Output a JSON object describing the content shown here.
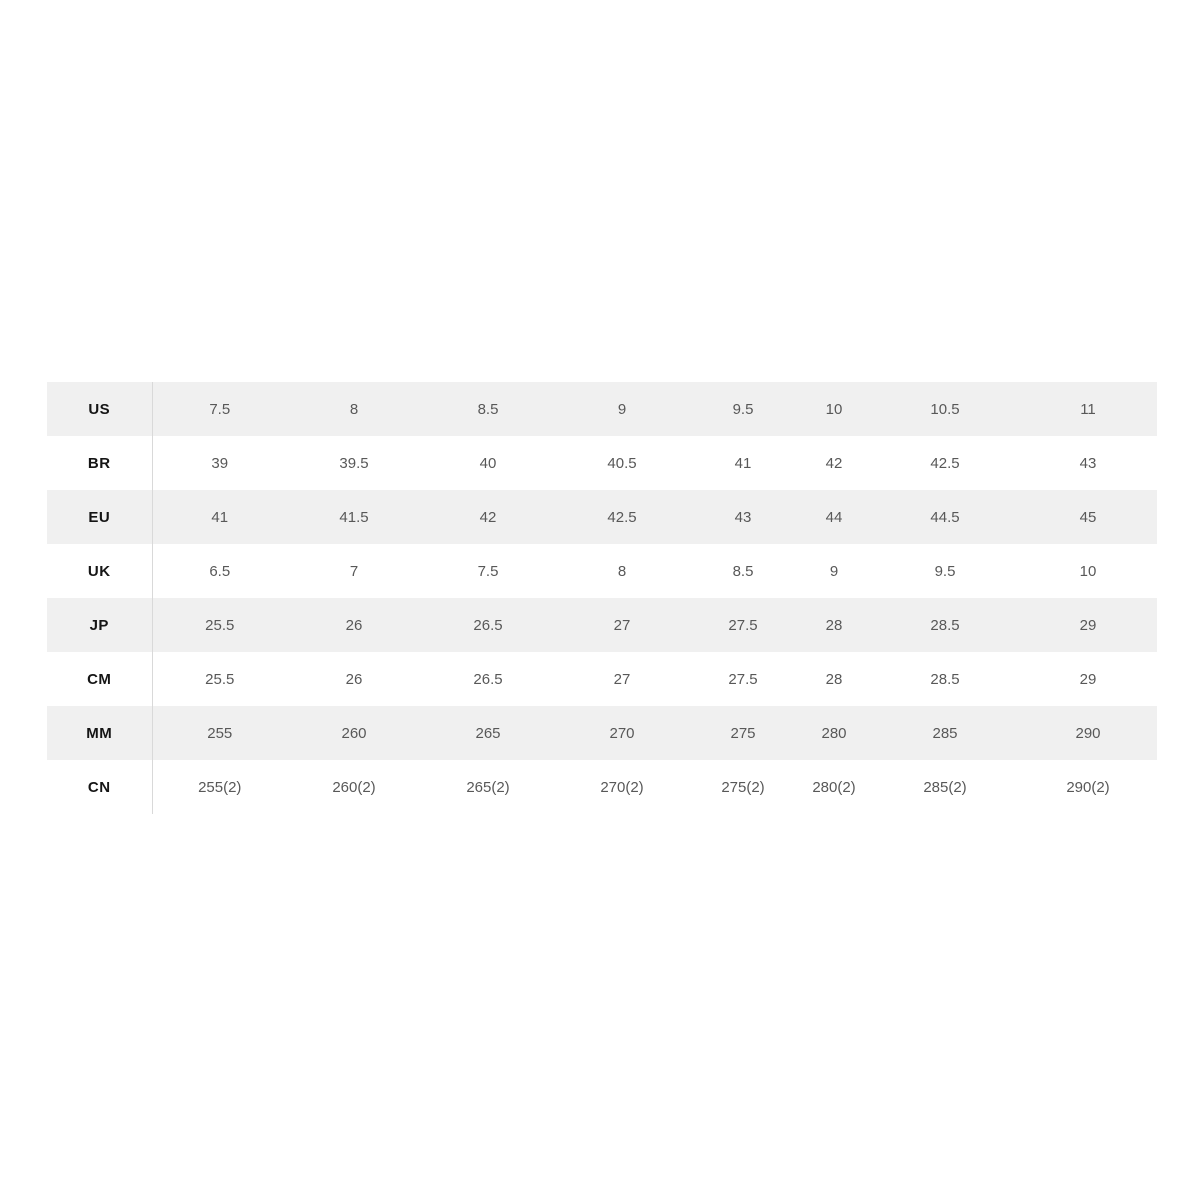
{
  "table": {
    "name": "shoe-size-conversion-chart",
    "colors": {
      "stripe_background": "#f0f0f0",
      "label_text": "#151515",
      "value_text": "#585858",
      "divider_line": "#d9d9d9",
      "page_background": "#ffffff"
    },
    "rows": [
      {
        "label": "US",
        "values": [
          "7.5",
          "8",
          "8.5",
          "9",
          "9.5",
          "10",
          "10.5",
          "11"
        ]
      },
      {
        "label": "BR",
        "values": [
          "39",
          "39.5",
          "40",
          "40.5",
          "41",
          "42",
          "42.5",
          "43"
        ]
      },
      {
        "label": "EU",
        "values": [
          "41",
          "41.5",
          "42",
          "42.5",
          "43",
          "44",
          "44.5",
          "45"
        ]
      },
      {
        "label": "UK",
        "values": [
          "6.5",
          "7",
          "7.5",
          "8",
          "8.5",
          "9",
          "9.5",
          "10"
        ]
      },
      {
        "label": "JP",
        "values": [
          "25.5",
          "26",
          "26.5",
          "27",
          "27.5",
          "28",
          "28.5",
          "29"
        ]
      },
      {
        "label": "CM",
        "values": [
          "25.5",
          "26",
          "26.5",
          "27",
          "27.5",
          "28",
          "28.5",
          "29"
        ]
      },
      {
        "label": "MM",
        "values": [
          "255",
          "260",
          "265",
          "270",
          "275",
          "280",
          "285",
          "290"
        ]
      },
      {
        "label": "CN",
        "values": [
          "255(2)",
          "260(2)",
          "265(2)",
          "270(2)",
          "275(2)",
          "280(2)",
          "285(2)",
          "290(2)"
        ]
      }
    ]
  }
}
